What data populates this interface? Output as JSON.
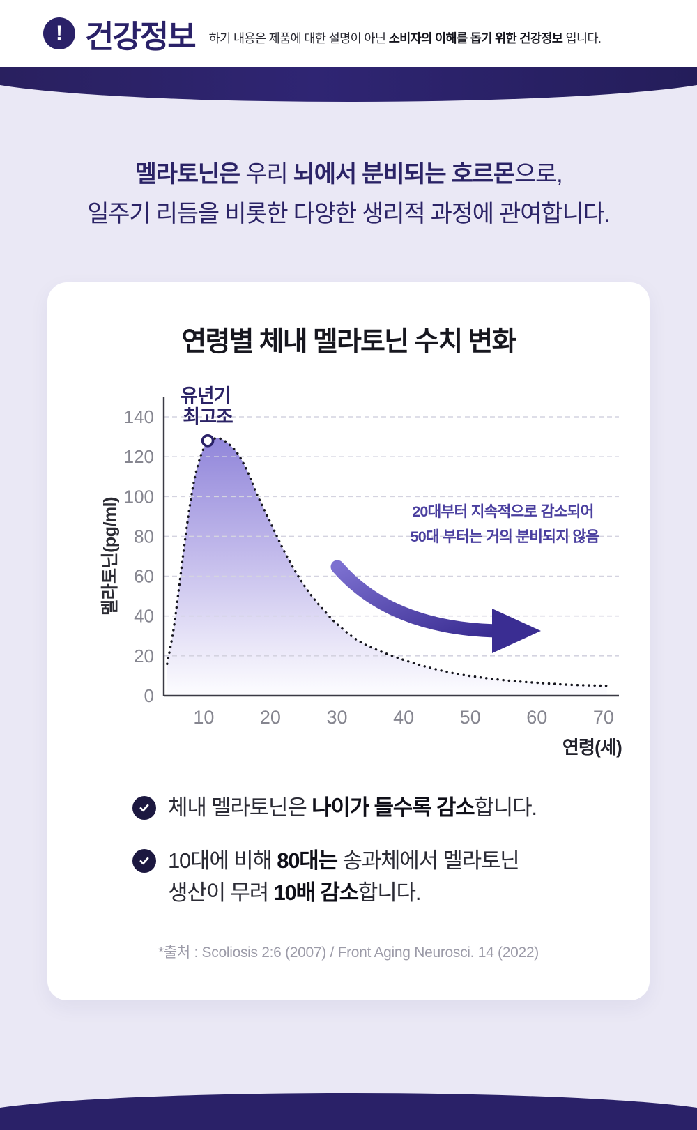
{
  "colors": {
    "deep-purple": "#2A2168",
    "page-lavender": "#EAE8F5",
    "headline-navy": "#2B2366",
    "title-black": "#17171F",
    "annotation-purple": "#4A3F9F",
    "arrow-purple": "#3A2D92",
    "area-top-purple": "#9186DA",
    "tick-gray": "#85858F",
    "source-gray": "#9C9BA8",
    "check-badge-navy": "#1C1840"
  },
  "icons": {
    "header_badge": "exclamation-icon",
    "bullet": "check-icon"
  },
  "header": {
    "badge_glyph": "!",
    "title": "건강정보",
    "subtitle_segments": [
      {
        "t": "하기 내용은 제품에 대한 설명이 아닌 ",
        "b": false
      },
      {
        "t": "소비자의 이해를 돕기 위한 건강정보",
        "b": true
      },
      {
        "t": " 입니다.",
        "b": false
      }
    ]
  },
  "intro": {
    "line1_segments": [
      {
        "t": "멜라토닌은 ",
        "b": true
      },
      {
        "t": "우리 ",
        "b": false
      },
      {
        "t": "뇌에서 분비되는 호르몬",
        "b": true
      },
      {
        "t": "으로,",
        "b": false
      }
    ],
    "line2_segments": [
      {
        "t": "일주기 리듬을 비롯한 다양한 생리적 과정에 관여합니다.",
        "b": false
      }
    ]
  },
  "chart_data": {
    "type": "area",
    "title": "연령별 체내 멜라토닌 수치 변화",
    "xlabel": "연령(세)",
    "ylabel": "멜라토닌(pg/ml)",
    "xlim": [
      4,
      72
    ],
    "ylim": [
      0,
      140
    ],
    "xticks": [
      10,
      20,
      30,
      40,
      50,
      60,
      70
    ],
    "yticks": [
      0,
      20,
      40,
      60,
      80,
      100,
      120,
      140
    ],
    "grid": "dashed-horizontal",
    "legend": "none",
    "series": [
      {
        "name": "체내 멜라토닌 수치",
        "x": [
          4.5,
          5.5,
          6.5,
          7.5,
          8.5,
          9.5,
          10.5,
          11.5,
          12.5,
          13.5,
          15,
          16.5,
          18,
          20,
          22,
          24,
          26,
          28,
          30,
          33,
          36,
          40,
          44,
          48,
          52,
          56,
          60,
          65,
          70.5
        ],
        "y": [
          16,
          34,
          60,
          86,
          107,
          120,
          127,
          129,
          129,
          127,
          122,
          113,
          101,
          87,
          73,
          61,
          51,
          43,
          36,
          28,
          23,
          18,
          14,
          11,
          9,
          7.5,
          6.5,
          5.5,
          5
        ]
      }
    ],
    "peak_marker": {
      "x": 10.6,
      "y": 128
    },
    "peak_label_lines": [
      "유년기",
      "최고조"
    ],
    "annotation_lines": [
      "20대부터 지속적으로 감소되어",
      "50대 부터는 거의 분비되지 않음"
    ]
  },
  "card": {
    "bullets": {
      "b1": {
        "line1": [
          {
            "t": "체내 멜라토닌은 ",
            "b": false
          },
          {
            "t": "나이가 들수록 감소",
            "b": true
          },
          {
            "t": "합니다.",
            "b": false
          }
        ]
      },
      "b2": {
        "line1": [
          {
            "t": "10대에 비해 ",
            "b": false
          },
          {
            "t": "80대는",
            "b": true
          },
          {
            "t": " 송과체에서 멜라토닌",
            "b": false
          }
        ],
        "line2": [
          {
            "t": "생산이 무려 ",
            "b": false
          },
          {
            "t": "10배 감소",
            "b": true
          },
          {
            "t": "합니다.",
            "b": false
          }
        ]
      }
    },
    "source": "*출처 : Scoliosis 2:6 (2007) / Front Aging Neurosci. 14 (2022)"
  }
}
